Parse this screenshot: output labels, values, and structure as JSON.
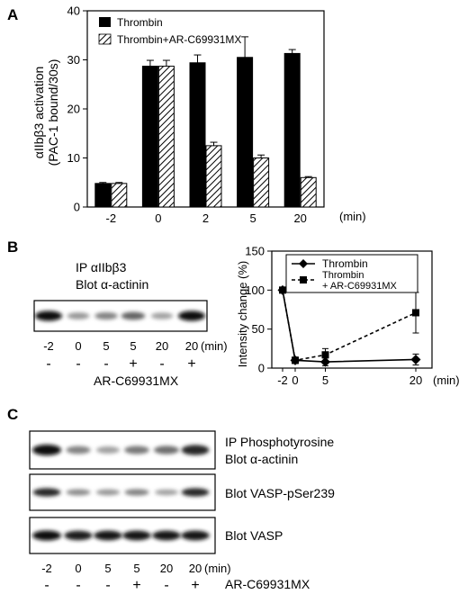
{
  "panel_a": {
    "letter": "A",
    "ylabel_line1": "αIIbβ3 activation",
    "ylabel_line2": "(PAC-1 bound/30s)",
    "x_unit": "(min)"
  },
  "panel_b": {
    "letter": "B",
    "blot_label_line1": "IP αIIbβ3",
    "blot_label_line2": "Blot α-actinin",
    "lane_times": [
      "-2",
      "0",
      "5",
      "5",
      "20",
      "20"
    ],
    "lane_unit": "(min)",
    "lane_treat": [
      "-",
      "-",
      "-",
      "+",
      "-",
      "+"
    ],
    "treatment_label": "AR-C69931MX",
    "ylabel": "Intensity change (%)",
    "x_unit": "(min)"
  },
  "panel_c": {
    "letter": "C",
    "blot1_label_line1": "IP Phosphotyrosine",
    "blot1_label_line2": "Blot α-actinin",
    "blot2_label": "Blot VASP-pSer239",
    "blot3_label": "Blot VASP",
    "lane_times": [
      "-2",
      "0",
      "5",
      "5",
      "20",
      "20"
    ],
    "lane_unit": "(min)",
    "lane_treat": [
      "-",
      "-",
      "-",
      "+",
      "-",
      "+"
    ],
    "treatment_label": "AR-C69931MX"
  },
  "blot_bands": {
    "b_actinin": [
      1.0,
      0.3,
      0.4,
      0.55,
      0.25,
      1.0
    ],
    "c_actinin": [
      1.0,
      0.4,
      0.25,
      0.45,
      0.5,
      0.85
    ],
    "c_vasp_p": [
      0.85,
      0.35,
      0.3,
      0.4,
      0.25,
      0.85
    ],
    "c_vasp": [
      1.0,
      0.9,
      0.95,
      0.95,
      0.95,
      0.95
    ]
  },
  "chart_data": [
    {
      "type": "bar",
      "categories": [
        "-2",
        "0",
        "2",
        "5",
        "20"
      ],
      "series": [
        {
          "name": "Thrombin",
          "values": [
            4.8,
            28.7,
            29.4,
            30.5,
            31.3
          ],
          "errors": [
            0.2,
            1.2,
            1.6,
            4.2,
            0.8
          ],
          "color": "#000000"
        },
        {
          "name": "Thrombin+AR-C69931MX",
          "values": [
            4.8,
            28.7,
            12.5,
            10.0,
            6.0
          ],
          "errors": [
            0.2,
            1.2,
            0.7,
            0.6,
            0.2
          ],
          "pattern": "hatched"
        }
      ],
      "ylim": [
        0,
        40
      ],
      "yticks": [
        0,
        10,
        20,
        30,
        40
      ],
      "legend": "top-left",
      "error_bars": true
    },
    {
      "type": "line",
      "x_ticks": [
        "-2",
        "0",
        "5",
        "20"
      ],
      "series": [
        {
          "name": "Thrombin",
          "x": [
            -2,
            0,
            5,
            20
          ],
          "y": [
            100,
            10,
            8,
            11
          ],
          "errors": [
            0,
            4,
            5,
            7
          ],
          "marker": "diamond",
          "style": "solid"
        },
        {
          "name": "Thrombin\n+ AR-C69931MX",
          "x": [
            -2,
            0,
            5,
            20
          ],
          "y": [
            100,
            10,
            17,
            71
          ],
          "errors": [
            0,
            4,
            8,
            26
          ],
          "marker": "square",
          "style": "dashed"
        }
      ],
      "ylim": [
        0,
        150
      ],
      "yticks": [
        0,
        50,
        100,
        150
      ],
      "legend": "top-right",
      "error_bars": true
    }
  ]
}
